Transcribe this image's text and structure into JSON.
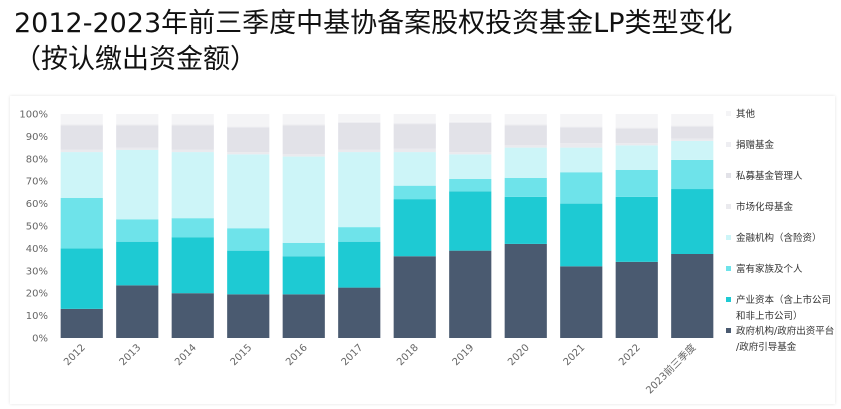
{
  "title_line1": "2012-2023年前三季度中基协备案股权投资基金LP类型变化",
  "title_line2": "（按认缴出资金额）",
  "chart_data": {
    "type": "bar",
    "stacked": true,
    "categories": [
      "2012",
      "2013",
      "2014",
      "2015",
      "2016",
      "2017",
      "2018",
      "2019",
      "2020",
      "2021",
      "2022",
      "2023前三季度"
    ],
    "y_ticks": [
      "0%",
      "10%",
      "20%",
      "30%",
      "40%",
      "50%",
      "60%",
      "70%",
      "80%",
      "90%",
      "100%"
    ],
    "ylim": [
      0,
      100
    ],
    "legend_position": "right",
    "series": [
      {
        "name": "政府机构/政府出资平台/政府引导基金",
        "color": "#4a5a70",
        "values": [
          13,
          23.5,
          20,
          19.5,
          19.5,
          22.5,
          36.5,
          39,
          42,
          32,
          34,
          37.5
        ]
      },
      {
        "name": "产业资本（含上市公司和非上市公司）",
        "color": "#1ecad3",
        "values": [
          27,
          19.5,
          25,
          19.5,
          17,
          20.5,
          25.5,
          26.5,
          21,
          28,
          29,
          29
        ]
      },
      {
        "name": "富有家族及个人",
        "color": "#6ee3ea",
        "values": [
          22.5,
          10,
          8.5,
          10,
          6,
          6.5,
          6,
          5.5,
          8.5,
          14,
          12,
          13
        ]
      },
      {
        "name": "金融机构（含险资）",
        "color": "#cdf5f8",
        "values": [
          20.5,
          31,
          29.5,
          33,
          38.5,
          33.5,
          15,
          11,
          13.5,
          11,
          11,
          8.5
        ]
      },
      {
        "name": "市场化母基金",
        "color": "#eaeaee",
        "values": [
          1,
          1,
          1,
          1,
          1,
          1,
          1.5,
          1,
          1,
          2,
          1,
          1
        ]
      },
      {
        "name": "私募基金管理人",
        "color": "#e2e2e8",
        "values": [
          11,
          10,
          11,
          11,
          13,
          12,
          11,
          13,
          9,
          7,
          6.5,
          5.5
        ]
      },
      {
        "name": "捐赠基金",
        "color": "#eeeef2",
        "values": [
          0.5,
          0.5,
          0.5,
          0.5,
          0.5,
          0.5,
          0.5,
          0.5,
          0.5,
          0.5,
          0.5,
          0.5
        ]
      },
      {
        "name": "其他",
        "color": "#f4f4f6",
        "values": [
          4.5,
          4.5,
          4.5,
          5.5,
          4.5,
          3.5,
          4,
          3.5,
          4.5,
          5.5,
          6,
          5
        ]
      }
    ],
    "legend_lines": [
      {
        "series": 7,
        "lines": [
          "其他"
        ]
      },
      {
        "series": 6,
        "lines": [
          "捐赠基金"
        ]
      },
      {
        "series": 5,
        "lines": [
          "私募基金管理人"
        ]
      },
      {
        "series": 4,
        "lines": [
          "市场化母基金"
        ]
      },
      {
        "series": 3,
        "lines": [
          "金融机构（含险资）"
        ]
      },
      {
        "series": 2,
        "lines": [
          "富有家族及个人"
        ]
      },
      {
        "series": 1,
        "lines": [
          "产业资本（含上市公司",
          "和非上市公司）"
        ]
      },
      {
        "series": 0,
        "lines": [
          "政府机构/政府出资平台",
          "/政府引导基金"
        ]
      }
    ]
  }
}
